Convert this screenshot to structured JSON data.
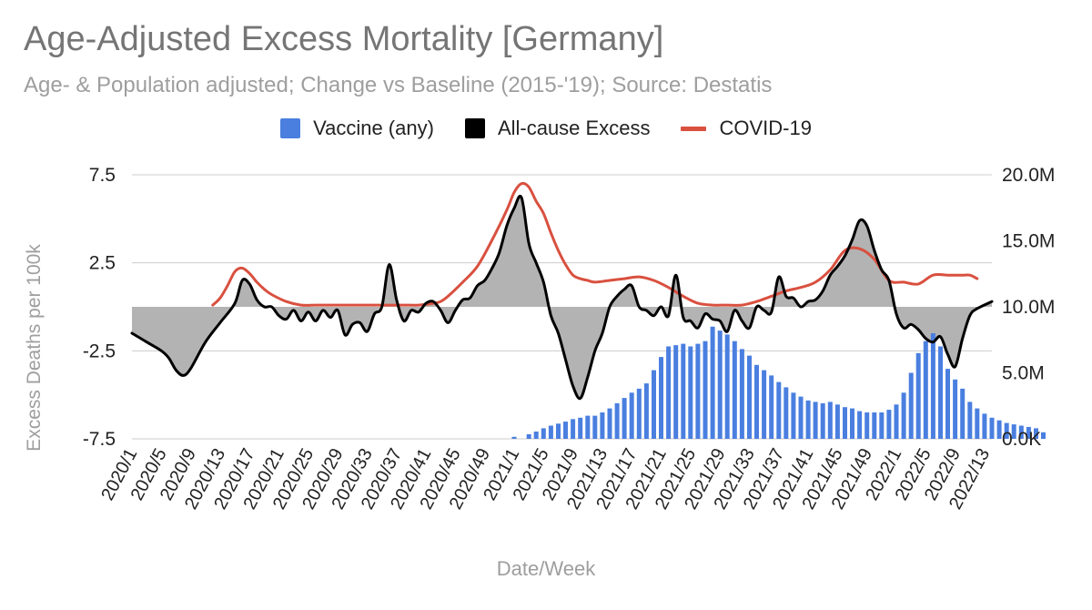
{
  "chart_data": {
    "type": "line",
    "title": "Age-Adjusted Excess Mortality [Germany]",
    "subtitle": "Age- & Population adjusted; Change vs Baseline (2015-'19); Source: Destatis",
    "xlabel": "Date/Week",
    "ylabel": "Excess Deaths per 100k",
    "ylim": [
      -7.5,
      7.5
    ],
    "y2lim": [
      0,
      20
    ],
    "y2unit": "M",
    "yticks": [
      "7.5",
      "2.5",
      "-2.5",
      "-7.5"
    ],
    "y2ticks": [
      "20.0M",
      "15.0M",
      "10.0M",
      "5.0M",
      "0.0K"
    ],
    "xticks": [
      "2020/1",
      "2020/5",
      "2020/9",
      "2020/13",
      "2020/17",
      "2020/21",
      "2020/25",
      "2020/29",
      "2020/33",
      "2020/37",
      "2020/41",
      "2020/45",
      "2020/49",
      "2021/1",
      "2021/5",
      "2021/9",
      "2021/13",
      "2021/17",
      "2021/21",
      "2021/25",
      "2021/29",
      "2021/33",
      "2021/37",
      "2021/41",
      "2021/45",
      "2021/49",
      "2022/1",
      "2022/5",
      "2022/9",
      "2022/13"
    ],
    "legend": [
      {
        "name": "Vaccine (any)",
        "color": "#4a7fe0",
        "kind": "box"
      },
      {
        "name": "All-cause Excess",
        "color": "#000000",
        "kind": "box"
      },
      {
        "name": "COVID-19",
        "color": "#d9503f",
        "kind": "line"
      }
    ],
    "series": [
      {
        "name": "All-cause Excess",
        "axis": "left",
        "color": "#000000",
        "fill": "#b3b3b3",
        "x": [
          1,
          3,
          5,
          6,
          7,
          8,
          9,
          11,
          13,
          15,
          16,
          17,
          18,
          19,
          20,
          21,
          22,
          23,
          24,
          25,
          26,
          27,
          28,
          29,
          30,
          31,
          32,
          33,
          34,
          35,
          36,
          37,
          38,
          39,
          40,
          41,
          42,
          43,
          44,
          45,
          46,
          47,
          48,
          49,
          50,
          51,
          52,
          53,
          54,
          55,
          56,
          57,
          58,
          59,
          60,
          61,
          62,
          63,
          64,
          65,
          66,
          67,
          68,
          69,
          70,
          71,
          72,
          73,
          74,
          75,
          76,
          77,
          78,
          79,
          80,
          81,
          82,
          83,
          84,
          85,
          86,
          87,
          88,
          89,
          90,
          91,
          92,
          93,
          94,
          95,
          96,
          97,
          98,
          99,
          100,
          101,
          102,
          103,
          104,
          105,
          106,
          107,
          108,
          109,
          110,
          111,
          112,
          113,
          114,
          115,
          116,
          118
        ],
        "values": [
          -1.5,
          -2.0,
          -2.5,
          -2.9,
          -3.6,
          -3.9,
          -3.5,
          -2.0,
          -0.9,
          0.2,
          1.5,
          1.3,
          0.4,
          0.0,
          0.0,
          -0.5,
          -0.7,
          -0.2,
          -0.8,
          -0.3,
          -0.8,
          -0.2,
          -0.6,
          -0.2,
          -1.6,
          -1.0,
          -0.9,
          -1.4,
          -0.4,
          0.0,
          2.4,
          0.4,
          -0.8,
          -0.2,
          -0.3,
          0.2,
          0.3,
          -0.2,
          -0.9,
          -0.2,
          0.4,
          0.5,
          1.2,
          1.5,
          2.2,
          3.1,
          4.6,
          5.6,
          6.2,
          3.6,
          2.5,
          1.4,
          -0.5,
          -1.5,
          -3.0,
          -4.5,
          -5.2,
          -4.0,
          -2.5,
          -1.5,
          0.0,
          0.6,
          1.0,
          1.2,
          0.0,
          -0.2,
          -0.5,
          0.0,
          -0.5,
          1.8,
          -0.6,
          -0.8,
          -1.2,
          -0.4,
          -0.7,
          -0.8,
          -1.4,
          -0.2,
          -0.8,
          -1.2,
          0.0,
          -0.2,
          -0.3,
          1.7,
          0.6,
          0.5,
          0.0,
          0.3,
          0.4,
          0.9,
          1.8,
          2.3,
          2.9,
          3.8,
          4.9,
          4.6,
          3.2,
          2.1,
          1.5,
          -0.4,
          -1.2,
          -1.0,
          -1.3,
          -1.8,
          -2.0,
          -1.7,
          -2.7,
          -3.4,
          -1.8,
          -0.5,
          -0.1,
          0.3
        ]
      },
      {
        "name": "COVID-19",
        "axis": "left",
        "color": "#d9503f",
        "x": [
          12,
          13,
          14,
          15,
          16,
          17,
          18,
          19,
          20,
          22,
          24,
          26,
          28,
          30,
          32,
          34,
          36,
          38,
          40,
          42,
          43,
          44,
          46,
          48,
          50,
          52,
          53,
          54,
          55,
          56,
          57,
          58,
          59,
          60,
          61,
          62,
          63,
          64,
          66,
          68,
          70,
          72,
          74,
          76,
          78,
          80,
          82,
          84,
          86,
          88,
          90,
          92,
          94,
          96,
          98,
          100,
          102,
          104,
          106,
          108,
          110,
          112,
          113,
          114,
          115,
          116
        ],
        "values": [
          0.1,
          0.5,
          1.2,
          2.0,
          2.2,
          1.9,
          1.4,
          1.0,
          0.7,
          0.3,
          0.1,
          0.1,
          0.1,
          0.1,
          0.1,
          0.1,
          0.1,
          0.1,
          0.1,
          0.2,
          0.3,
          0.6,
          1.4,
          2.3,
          3.8,
          5.5,
          6.5,
          7.0,
          6.8,
          6.0,
          5.3,
          4.2,
          3.2,
          2.4,
          1.8,
          1.6,
          1.5,
          1.4,
          1.5,
          1.6,
          1.7,
          1.5,
          1.1,
          0.6,
          0.2,
          0.1,
          0.1,
          0.1,
          0.3,
          0.6,
          0.9,
          1.1,
          1.4,
          2.1,
          3.2,
          3.3,
          2.7,
          1.5,
          1.4,
          1.3,
          1.8,
          1.8,
          1.8,
          1.8,
          1.8,
          1.6
        ]
      },
      {
        "name": "Vaccine (any)",
        "axis": "right",
        "color": "#4a7fe0",
        "x": [
          53,
          55,
          56,
          57,
          58,
          59,
          60,
          61,
          62,
          63,
          64,
          65,
          66,
          67,
          68,
          69,
          70,
          71,
          72,
          73,
          74,
          75,
          76,
          77,
          78,
          79,
          80,
          81,
          82,
          83,
          84,
          85,
          86,
          87,
          88,
          89,
          90,
          91,
          92,
          93,
          94,
          95,
          96,
          97,
          98,
          99,
          100,
          101,
          102,
          103,
          104,
          105,
          106,
          107,
          108,
          109,
          110,
          111,
          112,
          113,
          114,
          115,
          116
        ],
        "values": [
          0.15,
          0.35,
          0.55,
          0.8,
          1.0,
          1.15,
          1.3,
          1.5,
          1.6,
          1.75,
          1.75,
          2.0,
          2.3,
          2.7,
          3.1,
          3.5,
          3.8,
          4.2,
          5.2,
          6.2,
          7.0,
          7.1,
          7.2,
          7.0,
          7.2,
          7.4,
          8.5,
          8.2,
          7.9,
          7.4,
          6.8,
          6.3,
          5.6,
          5.2,
          4.8,
          4.3,
          3.9,
          3.5,
          3.2,
          2.9,
          2.8,
          2.7,
          2.8,
          2.6,
          2.4,
          2.3,
          2.1,
          2.0,
          2.0,
          2.0,
          2.2,
          2.6,
          3.5,
          5.0,
          6.5,
          7.4,
          8.0,
          7.0,
          5.3,
          4.5,
          3.8,
          2.8,
          2.3
        ]
      }
    ],
    "vaccine_values_full": [
      0.15,
      0.35,
      0.55,
      0.8,
      1.0,
      1.15,
      1.3,
      1.5,
      1.6,
      1.75,
      1.75,
      2.0,
      2.3,
      2.7,
      3.1,
      3.5,
      3.8,
      4.2,
      5.2,
      6.2,
      7.0,
      7.1,
      7.2,
      7.0,
      7.2,
      7.4,
      8.5,
      8.2,
      7.9,
      7.4,
      6.8,
      6.3,
      5.6,
      5.2,
      4.8,
      4.3,
      3.9,
      3.5,
      3.2,
      2.9,
      2.8,
      2.7,
      2.8,
      2.6,
      2.4,
      2.3,
      2.1,
      2.0,
      2.0,
      2.0,
      2.2,
      2.6,
      3.5,
      5.0,
      6.5,
      7.4,
      8.0,
      7.0,
      5.3,
      4.5,
      3.8,
      2.8,
      2.3,
      1.9,
      1.6,
      1.4,
      1.2,
      1.1,
      1.0,
      0.9,
      0.8,
      0.5
    ]
  }
}
